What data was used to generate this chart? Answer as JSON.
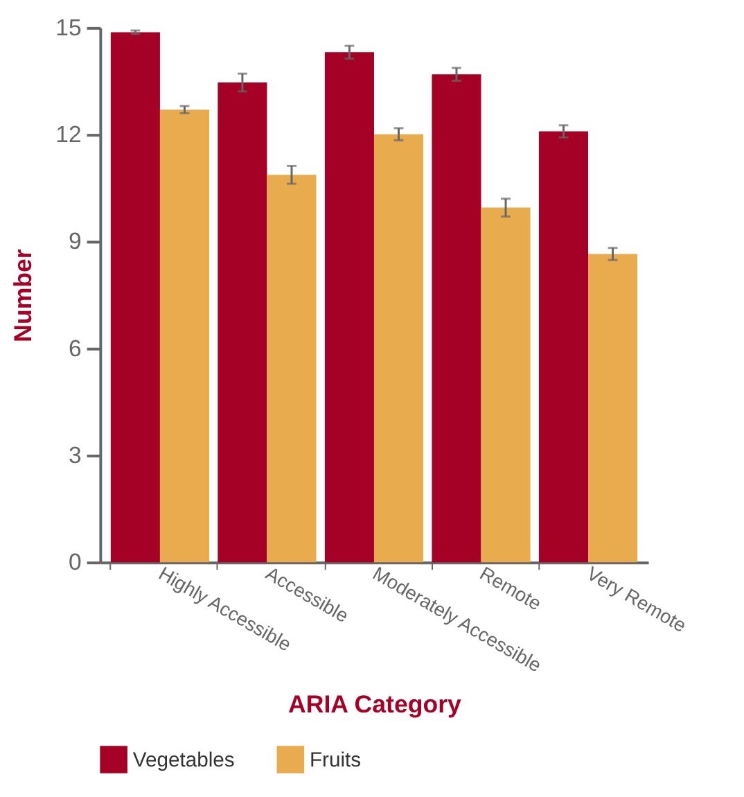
{
  "chart_data": {
    "type": "bar",
    "xlabel": "ARIA Category",
    "ylabel": "Number",
    "categories": [
      "Highly Accessible",
      "Accessible",
      "Moderately Accessible",
      "Remote",
      "Very Remote"
    ],
    "series": [
      {
        "name": "Vegetables",
        "color": "#a50026",
        "values": [
          14.87,
          13.46,
          14.31,
          13.69,
          12.09
        ],
        "errors": [
          0.05,
          0.25,
          0.18,
          0.18,
          0.17
        ]
      },
      {
        "name": "Fruits",
        "color": "#e8ab4e",
        "values": [
          12.7,
          10.87,
          12.01,
          9.95,
          8.65
        ],
        "errors": [
          0.1,
          0.25,
          0.17,
          0.25,
          0.17
        ]
      }
    ],
    "ylim": [
      0,
      15
    ],
    "yticks": [
      0,
      3,
      6,
      9,
      12,
      15
    ],
    "grid": false,
    "legend": "bottom"
  }
}
